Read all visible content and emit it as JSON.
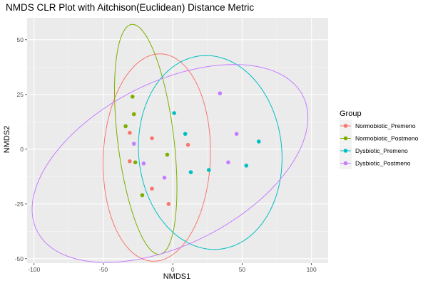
{
  "chart_data": {
    "type": "scatter",
    "title": "NMDS CLR Plot with Aitchison(Euclidean) Distance Metric",
    "xlabel": "NMDS1",
    "ylabel": "NMDS2",
    "xlim": [
      -105,
      112
    ],
    "ylim": [
      -52,
      60
    ],
    "x_ticks": [
      -100,
      -50,
      0,
      50,
      100
    ],
    "y_ticks": [
      -50,
      -25,
      0,
      25,
      50
    ],
    "x_tick_labels": [
      "-100",
      "-50",
      "0",
      "50",
      "100"
    ],
    "y_tick_labels": [
      "-50",
      "-25",
      "0",
      "25",
      "50"
    ],
    "grid": true,
    "legend": {
      "title": "Group",
      "position": "right"
    },
    "series": [
      {
        "name": "Normobiotic_Premeno",
        "color": "#F8766D",
        "points": [
          [
            -31,
            7.5
          ],
          [
            -15,
            5
          ],
          [
            11,
            2
          ],
          [
            -31,
            -5.5
          ],
          [
            -15,
            -18
          ],
          [
            -3,
            -25
          ]
        ],
        "ellipse": {
          "cx": -11.5,
          "cy": -3.8,
          "rx": 38.5,
          "ry": 47.5,
          "angle_deg": -8
        }
      },
      {
        "name": "Normobiotic_Postmeno",
        "color": "#7CAE00",
        "points": [
          [
            -29,
            24
          ],
          [
            -28,
            16
          ],
          [
            -34,
            10.5
          ],
          [
            -4,
            -2.5
          ],
          [
            -27,
            -6
          ],
          [
            -22,
            -21
          ]
        ],
        "ellipse": {
          "cx": -19.5,
          "cy": 4.5,
          "rx": 53.5,
          "ry": 20,
          "angle_deg": -78
        }
      },
      {
        "name": "Dysbiotic_Premeno",
        "color": "#00BFC4",
        "points": [
          [
            1,
            16.5
          ],
          [
            9,
            7
          ],
          [
            62,
            3.5
          ],
          [
            13,
            -10.5
          ],
          [
            26,
            -9.5
          ],
          [
            53,
            -7.5
          ]
        ],
        "ellipse": {
          "cx": 27,
          "cy": -1.5,
          "rx": 52,
          "ry": 44,
          "angle_deg": -10
        }
      },
      {
        "name": "Dysbiotic_Postmeno",
        "color": "#C77CFF",
        "points": [
          [
            34,
            25.5
          ],
          [
            46,
            7
          ],
          [
            -28,
            2.5
          ],
          [
            -21,
            -6.5
          ],
          [
            40,
            -6
          ],
          [
            -6,
            -13
          ]
        ],
        "ellipse": {
          "cx": -2,
          "cy": -6.5,
          "rx": 102,
          "ry": 39,
          "angle_deg": 14
        }
      }
    ]
  }
}
